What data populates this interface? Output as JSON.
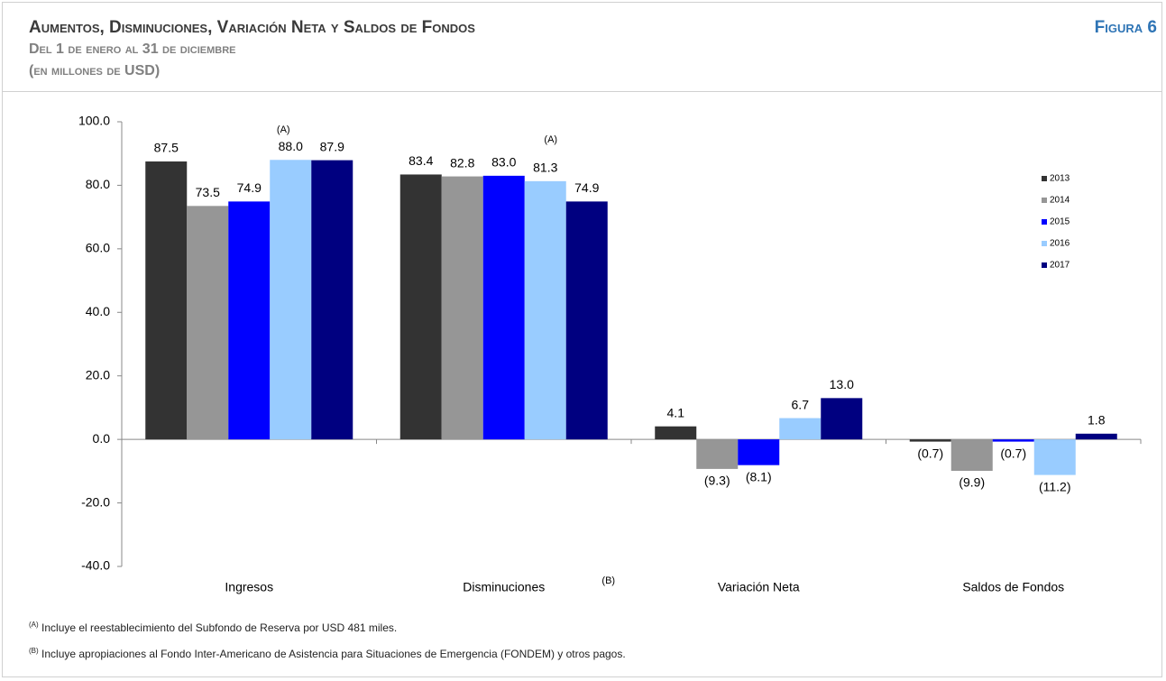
{
  "chart_data": {
    "type": "bar",
    "title": "Aumentos, Disminuciones, Variación Neta y Saldos de Fondos",
    "figure_label": "Figura 6",
    "subtitle": "Del 1 de enero al 31 de diciembre",
    "subtitle2": "(en millones de USD)",
    "categories": [
      "Ingresos",
      "Disminuciones",
      "Variación Neta",
      "Saldos de Fondos"
    ],
    "series": [
      {
        "name": "2013",
        "color": "#333333",
        "values": [
          87.5,
          83.4,
          4.1,
          -0.7
        ],
        "value_labels": [
          "87.5",
          "83.4",
          "4.1",
          "(0.7)"
        ]
      },
      {
        "name": "2014",
        "color": "#969696",
        "values": [
          73.5,
          82.8,
          -9.3,
          -9.9
        ],
        "value_labels": [
          "73.5",
          "82.8",
          "(9.3)",
          "(9.9)"
        ]
      },
      {
        "name": "2015",
        "color": "#0000ff",
        "values": [
          74.9,
          83.0,
          -8.1,
          -0.7
        ],
        "value_labels": [
          "74.9",
          "83.0",
          "(8.1)",
          "(0.7)"
        ]
      },
      {
        "name": "2016",
        "color": "#99ccff",
        "values": [
          88.0,
          81.3,
          6.7,
          -11.2
        ],
        "value_labels": [
          "88.0",
          "81.3",
          "6.7",
          "(11.2)"
        ]
      },
      {
        "name": "2017",
        "color": "#000080",
        "values": [
          87.9,
          74.9,
          13.0,
          1.8
        ],
        "value_labels": [
          "87.9",
          "74.9",
          "13.0",
          "1.8"
        ]
      }
    ],
    "ylim": [
      -40,
      100
    ],
    "yticks": [
      {
        "value": 100,
        "label": "100.0"
      },
      {
        "value": 80,
        "label": "80.0"
      },
      {
        "value": 60,
        "label": "60.0"
      },
      {
        "value": 40,
        "label": "40.0"
      },
      {
        "value": 20,
        "label": "20.0"
      },
      {
        "value": 0,
        "label": "0.0"
      },
      {
        "value": -20,
        "label": "-20.0"
      },
      {
        "value": -40,
        "label": "-40.0"
      }
    ],
    "grid": false,
    "legend": "right",
    "annotations": [
      "(A)",
      "(A)",
      "(B)"
    ],
    "footnotes": [
      {
        "marker": "(A)",
        "text": "Incluye el reestablecimiento del Subfondo de Reserva por USD 481 miles."
      },
      {
        "marker": "(B)",
        "text": "Incluye apropiaciones al Fondo Inter-Americano de Asistencia para Situaciones de Emergencia (FONDEM) y otros pagos."
      }
    ]
  }
}
